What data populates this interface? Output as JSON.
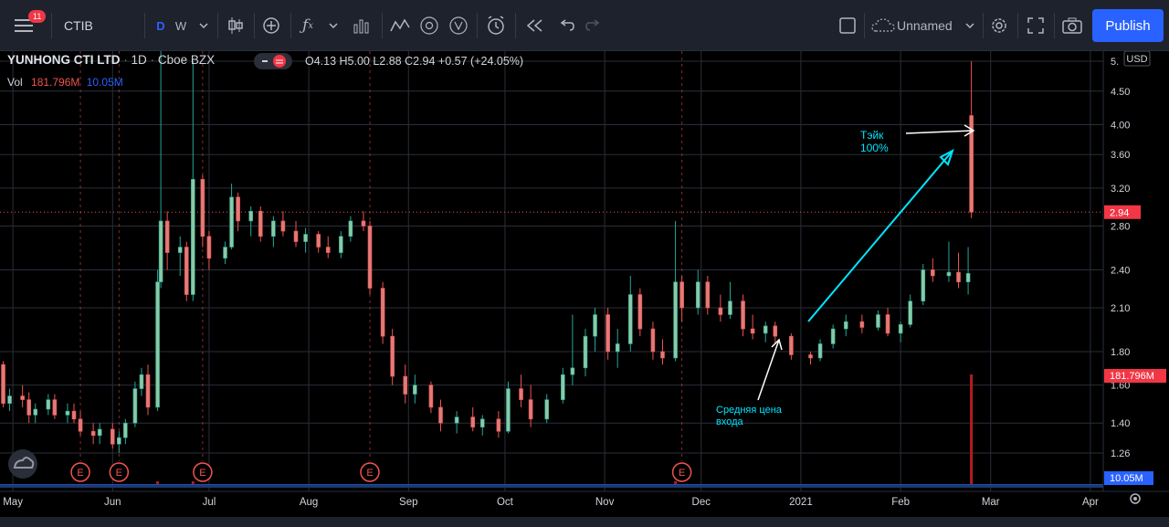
{
  "toolbar": {
    "alerts_badge": "11",
    "symbol": "CTIB",
    "tf_daily": "D",
    "tf_weekly": "W",
    "layout_name": "Unnamed",
    "publish_label": "Publish",
    "icons": [
      "menu-icon",
      "candles-icon",
      "plus-circle-icon",
      "fx-icon",
      "bar-chart-icon",
      "pattern-icon",
      "alert-clock-icon",
      "replay-icon",
      "undo-icon",
      "redo-icon",
      "layout-icon",
      "cloud-icon",
      "gear-icon",
      "fullscreen-icon",
      "camera-icon"
    ]
  },
  "legend": {
    "symbol_name": "YUNHONG CTI LTD",
    "interval": "1D",
    "exchange": "Cboe BZX",
    "ohlc": "O4.13 H5.00 L2.88 C2.94 +0.57 (+24.05%)",
    "vol_label": "Vol",
    "vol_value": "181.796M",
    "vol_ma": "10.05M"
  },
  "price_scale": {
    "currency": "USD",
    "ticks": [
      "5.",
      "4.50",
      "4.00",
      "3.60",
      "3.20",
      "2.80",
      "2.40",
      "2.10",
      "1.80",
      "1.60",
      "1.40",
      "1.26"
    ],
    "last_price_label": "2.94",
    "volume_label": "181.796M",
    "volume_ma_label": "10.05M"
  },
  "time_scale": {
    "labels": [
      "May",
      "Jun",
      "Jul",
      "Aug",
      "Sep",
      "Oct",
      "Nov",
      "Dec",
      "2021",
      "Feb",
      "Mar",
      "Apr"
    ]
  },
  "annotations": {
    "take_profit": [
      "Тэйк",
      "100%"
    ],
    "avg_entry": [
      "Средняя цена",
      "входа"
    ],
    "earnings_marker": "E"
  },
  "colors": {
    "up": "#26a69a",
    "down": "#ef5350",
    "up_fill": "#8cc9a3",
    "down_fill": "#e07b78",
    "annotation_cyan": "#00e5ff",
    "annotation_white": "#ffffff",
    "price_badge": "#f23645",
    "volume_ma_badge": "#2962ff"
  },
  "chart_data": {
    "type": "candlestick",
    "title": "",
    "xlabel": "",
    "ylabel": "",
    "scale": "log",
    "ylim": [
      1.2,
      5.0
    ],
    "xlim": [
      "2020-04-27",
      "2021-04-05"
    ],
    "candles": [
      [
        "2020-04-28",
        1.72,
        1.74,
        1.48,
        1.5
      ],
      [
        "2020-04-30",
        1.5,
        1.58,
        1.46,
        1.54
      ],
      [
        "2020-05-04",
        1.54,
        1.6,
        1.48,
        1.52
      ],
      [
        "2020-05-06",
        1.52,
        1.56,
        1.4,
        1.44
      ],
      [
        "2020-05-08",
        1.44,
        1.5,
        1.4,
        1.47
      ],
      [
        "2020-05-12",
        1.47,
        1.55,
        1.44,
        1.52
      ],
      [
        "2020-05-14",
        1.52,
        1.55,
        1.42,
        1.44
      ],
      [
        "2020-05-18",
        1.44,
        1.5,
        1.4,
        1.46
      ],
      [
        "2020-05-20",
        1.46,
        1.5,
        1.4,
        1.42
      ],
      [
        "2020-05-22",
        1.42,
        1.46,
        1.34,
        1.36
      ],
      [
        "2020-05-26",
        1.36,
        1.4,
        1.3,
        1.34
      ],
      [
        "2020-05-28",
        1.34,
        1.4,
        1.3,
        1.37
      ],
      [
        "2020-06-01",
        1.37,
        1.4,
        1.28,
        1.3
      ],
      [
        "2020-06-03",
        1.3,
        1.36,
        1.26,
        1.33
      ],
      [
        "2020-06-05",
        1.33,
        1.42,
        1.3,
        1.4
      ],
      [
        "2020-06-08",
        1.4,
        1.62,
        1.38,
        1.58
      ],
      [
        "2020-06-10",
        1.58,
        1.7,
        1.54,
        1.66
      ],
      [
        "2020-06-12",
        1.66,
        1.72,
        1.44,
        1.48
      ],
      [
        "2020-06-15",
        1.48,
        2.4,
        1.46,
        2.3
      ],
      [
        "2020-06-16",
        2.3,
        5.2,
        2.25,
        2.85
      ],
      [
        "2020-06-18",
        2.85,
        2.95,
        2.4,
        2.55
      ],
      [
        "2020-06-22",
        2.55,
        2.7,
        2.35,
        2.6
      ],
      [
        "2020-06-24",
        2.6,
        2.65,
        2.15,
        2.2
      ],
      [
        "2020-06-26",
        2.2,
        5.0,
        2.15,
        3.3
      ],
      [
        "2020-06-29",
        3.3,
        3.35,
        2.6,
        2.7
      ],
      [
        "2020-07-01",
        2.7,
        2.75,
        2.4,
        2.5
      ],
      [
        "2020-07-06",
        2.5,
        2.65,
        2.45,
        2.6
      ],
      [
        "2020-07-08",
        2.6,
        3.25,
        2.58,
        3.1
      ],
      [
        "2020-07-10",
        3.1,
        3.15,
        2.75,
        2.85
      ],
      [
        "2020-07-14",
        2.85,
        3.0,
        2.7,
        2.95
      ],
      [
        "2020-07-17",
        2.95,
        3.0,
        2.65,
        2.7
      ],
      [
        "2020-07-21",
        2.7,
        2.9,
        2.6,
        2.85
      ],
      [
        "2020-07-24",
        2.85,
        2.95,
        2.7,
        2.75
      ],
      [
        "2020-07-28",
        2.75,
        2.85,
        2.6,
        2.65
      ],
      [
        "2020-07-31",
        2.65,
        2.78,
        2.55,
        2.72
      ],
      [
        "2020-08-04",
        2.72,
        2.75,
        2.55,
        2.6
      ],
      [
        "2020-08-07",
        2.6,
        2.7,
        2.5,
        2.55
      ],
      [
        "2020-08-11",
        2.55,
        2.75,
        2.5,
        2.7
      ],
      [
        "2020-08-14",
        2.7,
        2.9,
        2.65,
        2.85
      ],
      [
        "2020-08-18",
        2.85,
        2.95,
        2.75,
        2.8
      ],
      [
        "2020-08-20",
        2.8,
        2.85,
        2.2,
        2.25
      ],
      [
        "2020-08-24",
        2.25,
        2.3,
        1.85,
        1.9
      ],
      [
        "2020-08-27",
        1.9,
        1.95,
        1.6,
        1.65
      ],
      [
        "2020-08-31",
        1.65,
        1.72,
        1.5,
        1.55
      ],
      [
        "2020-09-03",
        1.55,
        1.66,
        1.5,
        1.6
      ],
      [
        "2020-09-08",
        1.6,
        1.62,
        1.45,
        1.48
      ],
      [
        "2020-09-11",
        1.48,
        1.52,
        1.36,
        1.4
      ],
      [
        "2020-09-16",
        1.4,
        1.46,
        1.35,
        1.43
      ],
      [
        "2020-09-21",
        1.43,
        1.48,
        1.36,
        1.38
      ],
      [
        "2020-09-24",
        1.38,
        1.44,
        1.34,
        1.42
      ],
      [
        "2020-09-29",
        1.42,
        1.46,
        1.33,
        1.36
      ],
      [
        "2020-10-02",
        1.36,
        1.62,
        1.35,
        1.58
      ],
      [
        "2020-10-06",
        1.58,
        1.66,
        1.48,
        1.52
      ],
      [
        "2020-10-09",
        1.52,
        1.6,
        1.38,
        1.42
      ],
      [
        "2020-10-14",
        1.42,
        1.55,
        1.4,
        1.52
      ],
      [
        "2020-10-19",
        1.52,
        1.7,
        1.5,
        1.66
      ],
      [
        "2020-10-22",
        1.66,
        2.05,
        1.6,
        1.7
      ],
      [
        "2020-10-26",
        1.7,
        1.95,
        1.65,
        1.9
      ],
      [
        "2020-10-29",
        1.9,
        2.1,
        1.8,
        2.05
      ],
      [
        "2020-11-02",
        2.05,
        2.1,
        1.75,
        1.8
      ],
      [
        "2020-11-05",
        1.8,
        1.95,
        1.7,
        1.85
      ],
      [
        "2020-11-09",
        1.85,
        2.35,
        1.8,
        2.2
      ],
      [
        "2020-11-12",
        2.2,
        2.25,
        1.9,
        1.95
      ],
      [
        "2020-11-16",
        1.95,
        2.0,
        1.75,
        1.8
      ],
      [
        "2020-11-19",
        1.8,
        1.88,
        1.72,
        1.76
      ],
      [
        "2020-11-23",
        1.76,
        2.85,
        1.74,
        2.3
      ],
      [
        "2020-11-25",
        2.3,
        2.35,
        2.0,
        2.1
      ],
      [
        "2020-11-30",
        2.1,
        2.4,
        2.05,
        2.3
      ],
      [
        "2020-12-03",
        2.3,
        2.35,
        2.05,
        2.1
      ],
      [
        "2020-12-07",
        2.1,
        2.2,
        2.0,
        2.05
      ],
      [
        "2020-12-10",
        2.05,
        2.3,
        2.02,
        2.15
      ],
      [
        "2020-12-14",
        2.15,
        2.2,
        1.9,
        1.95
      ],
      [
        "2020-12-17",
        1.95,
        2.05,
        1.88,
        1.92
      ],
      [
        "2020-12-21",
        1.92,
        2.0,
        1.86,
        1.97
      ],
      [
        "2020-12-24",
        1.97,
        2.0,
        1.85,
        1.9
      ],
      [
        "2020-12-29",
        1.9,
        1.92,
        1.75,
        1.78
      ],
      [
        "2021-01-04",
        1.78,
        1.8,
        1.72,
        1.76
      ],
      [
        "2021-01-07",
        1.76,
        1.88,
        1.74,
        1.85
      ],
      [
        "2021-01-11",
        1.85,
        1.98,
        1.82,
        1.95
      ],
      [
        "2021-01-15",
        1.95,
        2.05,
        1.9,
        2.0
      ],
      [
        "2021-01-20",
        2.0,
        2.05,
        1.92,
        1.96
      ],
      [
        "2021-01-25",
        1.96,
        2.08,
        1.94,
        2.05
      ],
      [
        "2021-01-28",
        2.05,
        2.1,
        1.9,
        1.92
      ],
      [
        "2021-02-01",
        1.92,
        2.0,
        1.86,
        1.98
      ],
      [
        "2021-02-04",
        1.98,
        2.2,
        1.96,
        2.15
      ],
      [
        "2021-02-08",
        2.15,
        2.45,
        2.12,
        2.4
      ],
      [
        "2021-02-11",
        2.4,
        2.5,
        2.3,
        2.35
      ],
      [
        "2021-02-16",
        2.35,
        2.65,
        2.3,
        2.38
      ],
      [
        "2021-02-19",
        2.38,
        2.55,
        2.25,
        2.3
      ],
      [
        "2021-02-22",
        2.3,
        2.6,
        2.2,
        2.37
      ],
      [
        "2021-02-23",
        4.13,
        5.0,
        2.88,
        2.94
      ]
    ],
    "volume": [
      [
        "2020-06-15",
        0.6
      ],
      [
        "2020-06-26",
        2.0
      ],
      [
        "2020-11-23",
        2.1
      ],
      [
        "2021-02-23",
        181.796
      ]
    ],
    "volume_ma_value": 10.05,
    "earnings_dates": [
      "2020-05-22",
      "2020-06-03",
      "2020-06-29",
      "2020-08-20",
      "2020-11-25"
    ],
    "last_price": 2.94
  }
}
